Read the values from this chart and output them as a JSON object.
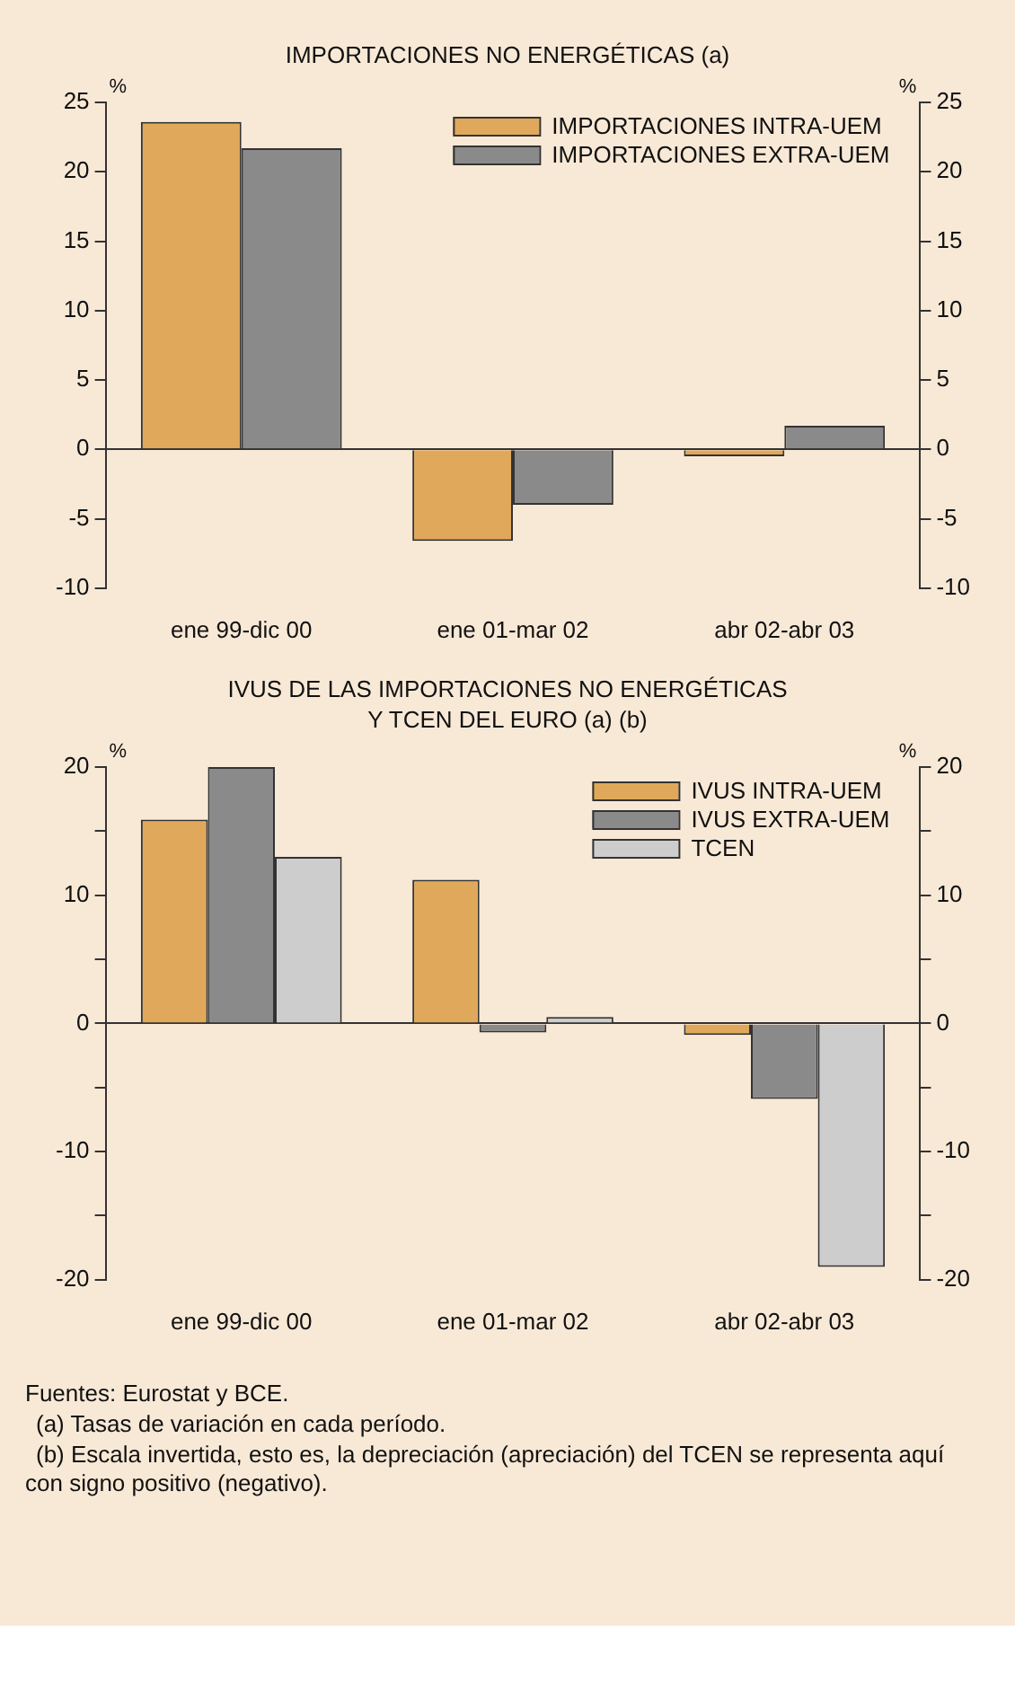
{
  "chart_data": [
    {
      "type": "bar",
      "title": "IMPORTACIONES NO ENERGÉTICAS (a)",
      "categories": [
        "ene 99-dic 00",
        "ene 01-mar 02",
        "abr 02-abr 03"
      ],
      "series": [
        {
          "name": "IMPORTACIONES INTRA-UEM",
          "color": "#e0a85a",
          "values": [
            23.6,
            -6.6,
            -0.5
          ]
        },
        {
          "name": "IMPORTACIONES EXTRA-UEM",
          "color": "#8a8a8a",
          "values": [
            21.7,
            -4.0,
            1.7
          ]
        }
      ],
      "ylabel": "%",
      "y2label": "%",
      "ylim": [
        -10,
        25
      ],
      "yticks": [
        -10,
        -5,
        0,
        5,
        10,
        15,
        20,
        25
      ],
      "y2lim": [
        -10,
        25
      ],
      "y2ticks": [
        -10,
        -5,
        0,
        5,
        10,
        15,
        20,
        25
      ],
      "legend": "top right"
    },
    {
      "type": "bar",
      "title": "IVUS DE LAS IMPORTACIONES NO ENERGÉTICAS\nY TCEN DEL EURO (a) (b)",
      "categories": [
        "ene 99-dic 00",
        "ene 01-mar 02",
        "abr 02-abr 03"
      ],
      "series": [
        {
          "name": "IVUS INTRA-UEM",
          "color": "#e0a85a",
          "values": [
            15.9,
            11.2,
            -0.9
          ]
        },
        {
          "name": "IVUS EXTRA-UEM",
          "color": "#8a8a8a",
          "values": [
            20.0,
            -0.7,
            -5.9
          ]
        },
        {
          "name": "TCEN",
          "color": "#cdcdcd",
          "values": [
            13.0,
            0.5,
            -19.0
          ]
        }
      ],
      "ylabel": "%",
      "y2label": "%",
      "ylim": [
        -20,
        20
      ],
      "yticks": [
        -20,
        {
          "value": -15,
          "label": null
        },
        -10,
        {
          "value": -5,
          "label": null
        },
        0,
        {
          "value": 5,
          "label": null
        },
        10,
        {
          "value": 15,
          "label": null
        },
        20
      ],
      "y2lim": [
        -20,
        20
      ],
      "y2ticks": [
        -20,
        {
          "value": -15,
          "label": null
        },
        -10,
        {
          "value": -5,
          "label": null
        },
        0,
        {
          "value": 5,
          "label": null
        },
        10,
        {
          "value": 15,
          "label": null
        },
        20
      ],
      "legend": "top right",
      "annotations": [
        "Fuentes: Eurostat y BCE.",
        "(a)  Tasas de variación en cada período.",
        "(b)  Escala invertida, esto es, la depreciación (apreciación) del TCEN se representa aquí con signo positivo (negativo)."
      ]
    }
  ]
}
